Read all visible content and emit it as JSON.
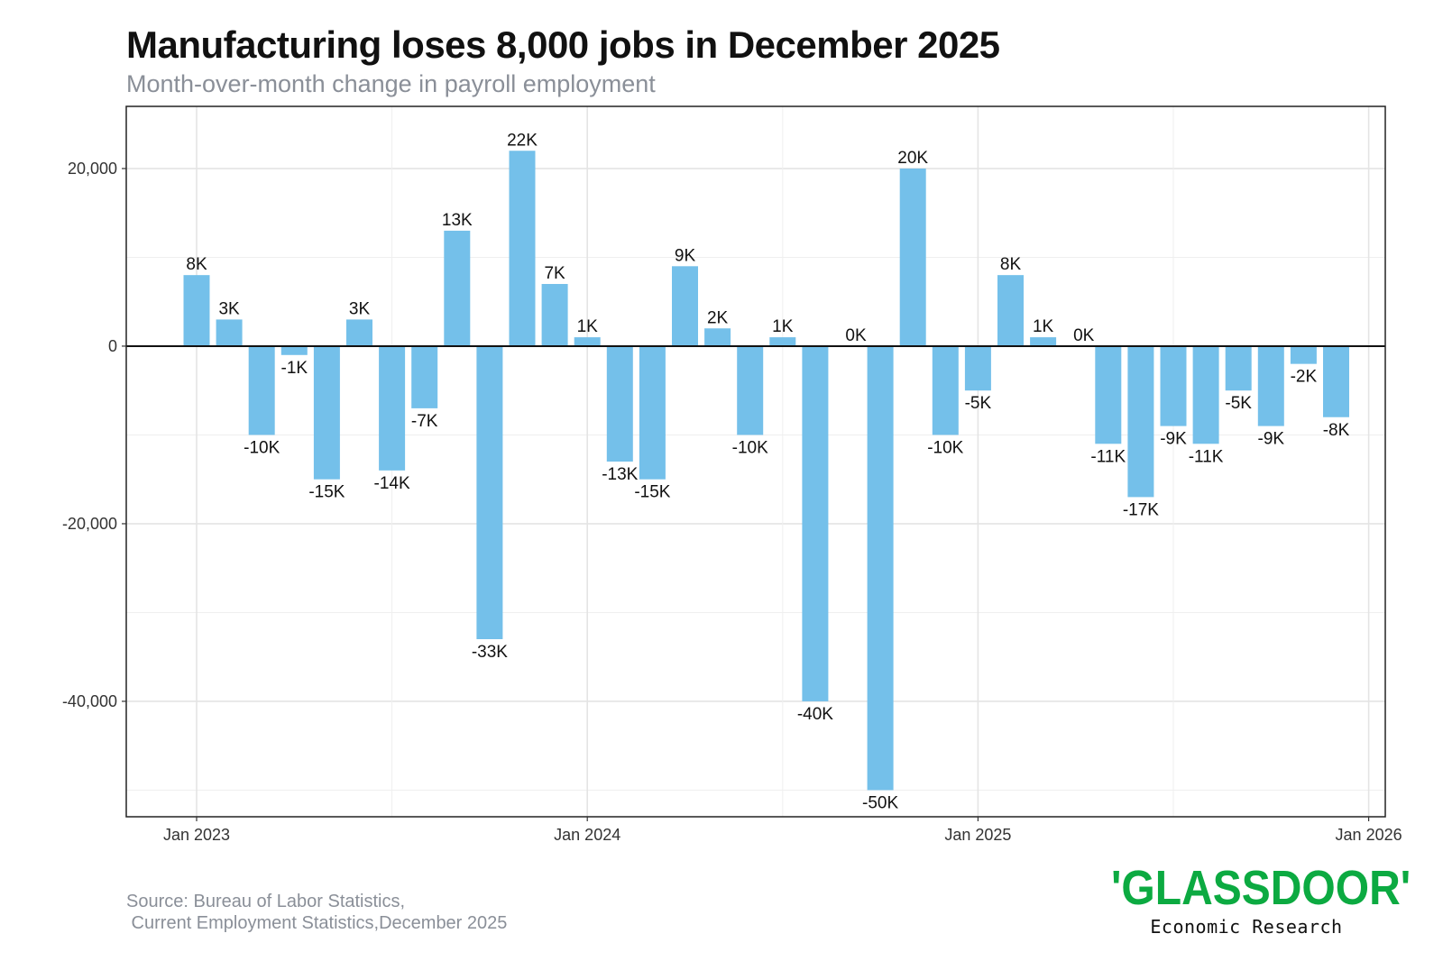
{
  "header": {
    "title": "Manufacturing loses 8,000 jobs in December 2025",
    "subtitle": "Month-over-month change in payroll employment"
  },
  "footer": {
    "source_line1": "Source: Bureau of Labor Statistics,",
    "source_line2": " Current Employment Statistics,December 2025"
  },
  "logo": {
    "wordmark": "'GLASSDOOR'",
    "tagline": "Economic Research",
    "brand_color": "#0caa41"
  },
  "chart_data": {
    "type": "bar",
    "title": "Manufacturing loses 8,000 jobs in December 2025",
    "subtitle": "Month-over-month change in payroll employment",
    "xlabel": "",
    "ylabel": "",
    "ylim": [
      -53000,
      27000
    ],
    "yticks": [
      20000,
      0,
      -20000,
      -40000
    ],
    "ytick_labels": [
      "20,000",
      "0",
      "-20,000",
      "-40,000"
    ],
    "xticks": [
      "Jan 2023",
      "Jan 2024",
      "Jan 2025",
      "Jan 2026"
    ],
    "bar_color": "#74c0ea",
    "zero_line_color": "#111111",
    "grid": true,
    "categories": [
      "Jan 2023",
      "Feb 2023",
      "Mar 2023",
      "Apr 2023",
      "May 2023",
      "Jun 2023",
      "Jul 2023",
      "Aug 2023",
      "Sep 2023",
      "Oct 2023",
      "Nov 2023",
      "Dec 2023",
      "Jan 2024",
      "Feb 2024",
      "Mar 2024",
      "Apr 2024",
      "May 2024",
      "Jun 2024",
      "Jul 2024",
      "Aug 2024",
      "Sep 2024",
      "Oct 2024",
      "Nov 2024",
      "Dec 2024",
      "Jan 2025",
      "Feb 2025",
      "Mar 2025",
      "Apr 2025",
      "May 2025",
      "Jun 2025",
      "Jul 2025",
      "Aug 2025",
      "Sep 2025",
      "Oct 2025",
      "Nov 2025",
      "Dec 2025"
    ],
    "values": [
      8000,
      3000,
      -10000,
      -1000,
      -15000,
      3000,
      -14000,
      -7000,
      13000,
      -33000,
      22000,
      7000,
      1000,
      -13000,
      -15000,
      9000,
      2000,
      -10000,
      1000,
      -40000,
      0,
      -50000,
      20000,
      -10000,
      -5000,
      8000,
      1000,
      0,
      -11000,
      -17000,
      -9000,
      -11000,
      -5000,
      -9000,
      -2000,
      -8000
    ],
    "labels": [
      "8K",
      "3K",
      "-10K",
      "-1K",
      "-15K",
      "3K",
      "-14K",
      "-7K",
      "13K",
      "-33K",
      "22K",
      "7K",
      "1K",
      "-13K",
      "-15K",
      "9K",
      "2K",
      "-10K",
      "1K",
      "-40K",
      "0K",
      "-50K",
      "20K",
      "-10K",
      "-5K",
      "8K",
      "1K",
      "0K",
      "-11K",
      "-17K",
      "-9K",
      "-11K",
      "-5K",
      "-9K",
      "-2K",
      "-8K"
    ]
  }
}
